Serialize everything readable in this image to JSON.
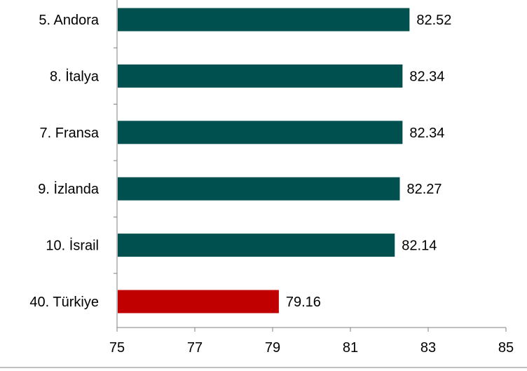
{
  "chart_data": {
    "type": "bar",
    "orientation": "horizontal",
    "categories": [
      "5. Andora",
      "8. İtalya",
      "7. Fransa",
      "9. İzlanda",
      "10. İsrail",
      "40. Türkiye"
    ],
    "values": [
      82.52,
      82.34,
      82.34,
      82.27,
      82.14,
      79.16
    ],
    "value_labels": [
      "82.52",
      "82.34",
      "82.34",
      "82.27",
      "82.14",
      "79.16"
    ],
    "bar_colors": [
      "#005050",
      "#005050",
      "#005050",
      "#005050",
      "#005050",
      "#c00000"
    ],
    "xlim": [
      75,
      85
    ],
    "xticks": [
      "75",
      "77",
      "79",
      "81",
      "83",
      "85"
    ],
    "title": "",
    "xlabel": "",
    "ylabel": "",
    "grid": false,
    "legend": "none"
  }
}
